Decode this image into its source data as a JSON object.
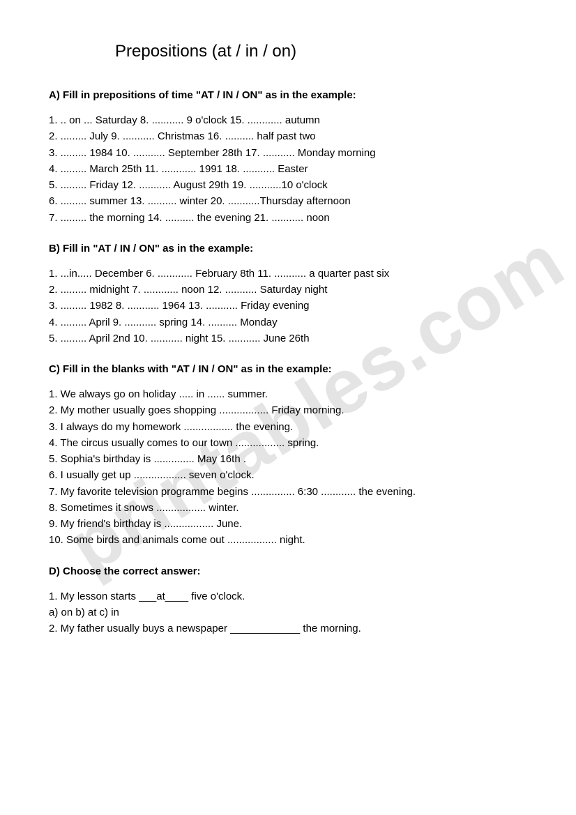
{
  "title": "Prepositions (at / in / on)",
  "watermark": "printables.com",
  "sectionA": {
    "header": "A) Fill in prepositions of time \"AT / IN / ON\" as in the example:",
    "lines": [
      "1. .. on ... Saturday 8. ........... 9 o'clock 15. ............ autumn",
      "2. ......... July 9. ........... Christmas 16. .......... half past two",
      "3. ......... 1984 10. ........... September 28th 17. ........... Monday morning",
      "4. ......... March 25th 11. ............ 1991 18. ........... Easter",
      "5. ......... Friday 12. ........... August 29th 19. ...........10 o'clock",
      "6. ......... summer 13. .......... winter 20. ...........Thursday afternoon",
      "7. ......... the morning 14. .......... the evening 21. ........... noon"
    ]
  },
  "sectionB": {
    "header": "B) Fill in \"AT / IN / ON\" as in the example:",
    "lines": [
      "1. ...in..... December 6. ............ February 8th 11. ........... a quarter past six",
      "2. ......... midnight 7. ............ noon 12. ........... Saturday night",
      "3. ......... 1982 8. ........... 1964 13. ........... Friday evening",
      "4. ......... April 9. ........... spring 14. .......... Monday",
      "5. ......... April 2nd 10. ........... night 15. ........... June 26th"
    ]
  },
  "sectionC": {
    "header": "C) Fill in the blanks with \"AT / IN / ON\" as in the example:",
    "lines": [
      "1. We always go on holiday ..... in ...... summer.",
      "2. My mother usually goes shopping ................. Friday morning.",
      "3. I always do my homework ................. the evening.",
      "4. The circus usually comes to our town ................. spring.",
      "5. Sophia's birthday is .............. May 16th .",
      "6. I usually get up .................. seven o'clock.",
      "7. My favorite television programme begins ............... 6:30 ............ the evening.",
      "8. Sometimes it snows ................. winter.",
      "9. My friend's birthday is ................. June.",
      "10. Some birds and animals come out ................. night."
    ]
  },
  "sectionD": {
    "header": "D) Choose the correct answer:",
    "lines": [
      "1. My lesson starts ___at____ five o'clock.",
      "a) on b) at c) in",
      "2. My father usually buys a newspaper ____________ the morning."
    ]
  }
}
